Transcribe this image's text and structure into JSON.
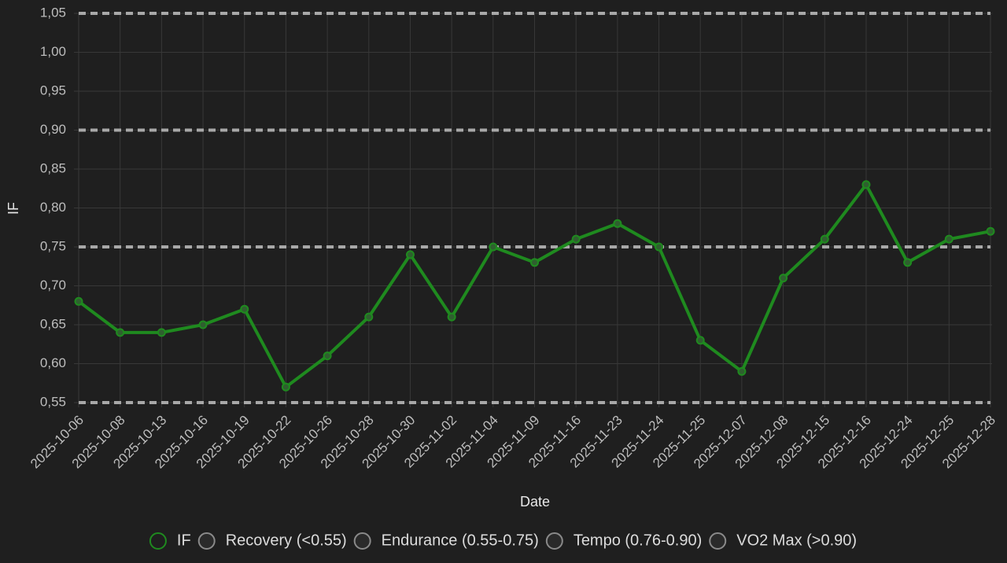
{
  "chart_data": {
    "type": "line",
    "x_label": "Date",
    "y_label": "IF",
    "categories": [
      "2025-10-06",
      "2025-10-08",
      "2025-10-13",
      "2025-10-16",
      "2025-10-19",
      "2025-10-22",
      "2025-10-26",
      "2025-10-28",
      "2025-10-30",
      "2025-11-02",
      "2025-11-04",
      "2025-11-09",
      "2025-11-16",
      "2025-11-23",
      "2025-11-24",
      "2025-11-25",
      "2025-12-07",
      "2025-12-08",
      "2025-12-15",
      "2025-12-16",
      "2025-12-24",
      "2025-12-25",
      "2025-12-28"
    ],
    "series": [
      {
        "name": "IF",
        "color": "#1f8a1f",
        "style": "solid",
        "values": [
          0.68,
          0.64,
          0.64,
          0.65,
          0.67,
          0.57,
          0.61,
          0.66,
          0.74,
          0.66,
          0.75,
          0.73,
          0.76,
          0.78,
          0.75,
          0.63,
          0.59,
          0.71,
          0.76,
          0.83,
          0.73,
          0.76,
          0.77
        ]
      },
      {
        "name": "Recovery (<0.55)",
        "color": "#a8a8a8",
        "style": "dashed",
        "values": [
          0.55,
          0.55,
          0.55,
          0.55,
          0.55,
          0.55,
          0.55,
          0.55,
          0.55,
          0.55,
          0.55,
          0.55,
          0.55,
          0.55,
          0.55,
          0.55,
          0.55,
          0.55,
          0.55,
          0.55,
          0.55,
          0.55,
          0.55
        ]
      },
      {
        "name": "Endurance (0.55-0.75)",
        "color": "#a8a8a8",
        "style": "dashed",
        "values": [
          0.75,
          0.75,
          0.75,
          0.75,
          0.75,
          0.75,
          0.75,
          0.75,
          0.75,
          0.75,
          0.75,
          0.75,
          0.75,
          0.75,
          0.75,
          0.75,
          0.75,
          0.75,
          0.75,
          0.75,
          0.75,
          0.75,
          0.75
        ]
      },
      {
        "name": "Tempo (0.76-0.90)",
        "color": "#a8a8a8",
        "style": "dashed",
        "values": [
          0.9,
          0.9,
          0.9,
          0.9,
          0.9,
          0.9,
          0.9,
          0.9,
          0.9,
          0.9,
          0.9,
          0.9,
          0.9,
          0.9,
          0.9,
          0.9,
          0.9,
          0.9,
          0.9,
          0.9,
          0.9,
          0.9,
          0.9
        ]
      },
      {
        "name": "VO2 Max (>0.90)",
        "color": "#a8a8a8",
        "style": "dashed",
        "values": [
          1.05,
          1.05,
          1.05,
          1.05,
          1.05,
          1.05,
          1.05,
          1.05,
          1.05,
          1.05,
          1.05,
          1.05,
          1.05,
          1.05,
          1.05,
          1.05,
          1.05,
          1.05,
          1.05,
          1.05,
          1.05,
          1.05,
          1.05
        ]
      }
    ],
    "ylim": [
      0.55,
      1.05
    ],
    "yticks": [
      {
        "value": 0.55,
        "label": "0,55"
      },
      {
        "value": 0.6,
        "label": "0,60"
      },
      {
        "value": 0.65,
        "label": "0,65"
      },
      {
        "value": 0.7,
        "label": "0,70"
      },
      {
        "value": 0.75,
        "label": "0,75"
      },
      {
        "value": 0.8,
        "label": "0,80"
      },
      {
        "value": 0.85,
        "label": "0,85"
      },
      {
        "value": 0.9,
        "label": "0,90"
      },
      {
        "value": 0.95,
        "label": "0,95"
      },
      {
        "value": 1.0,
        "label": "1,00"
      },
      {
        "value": 1.05,
        "label": "1,05"
      }
    ],
    "grid": true,
    "legend": "bottom"
  }
}
